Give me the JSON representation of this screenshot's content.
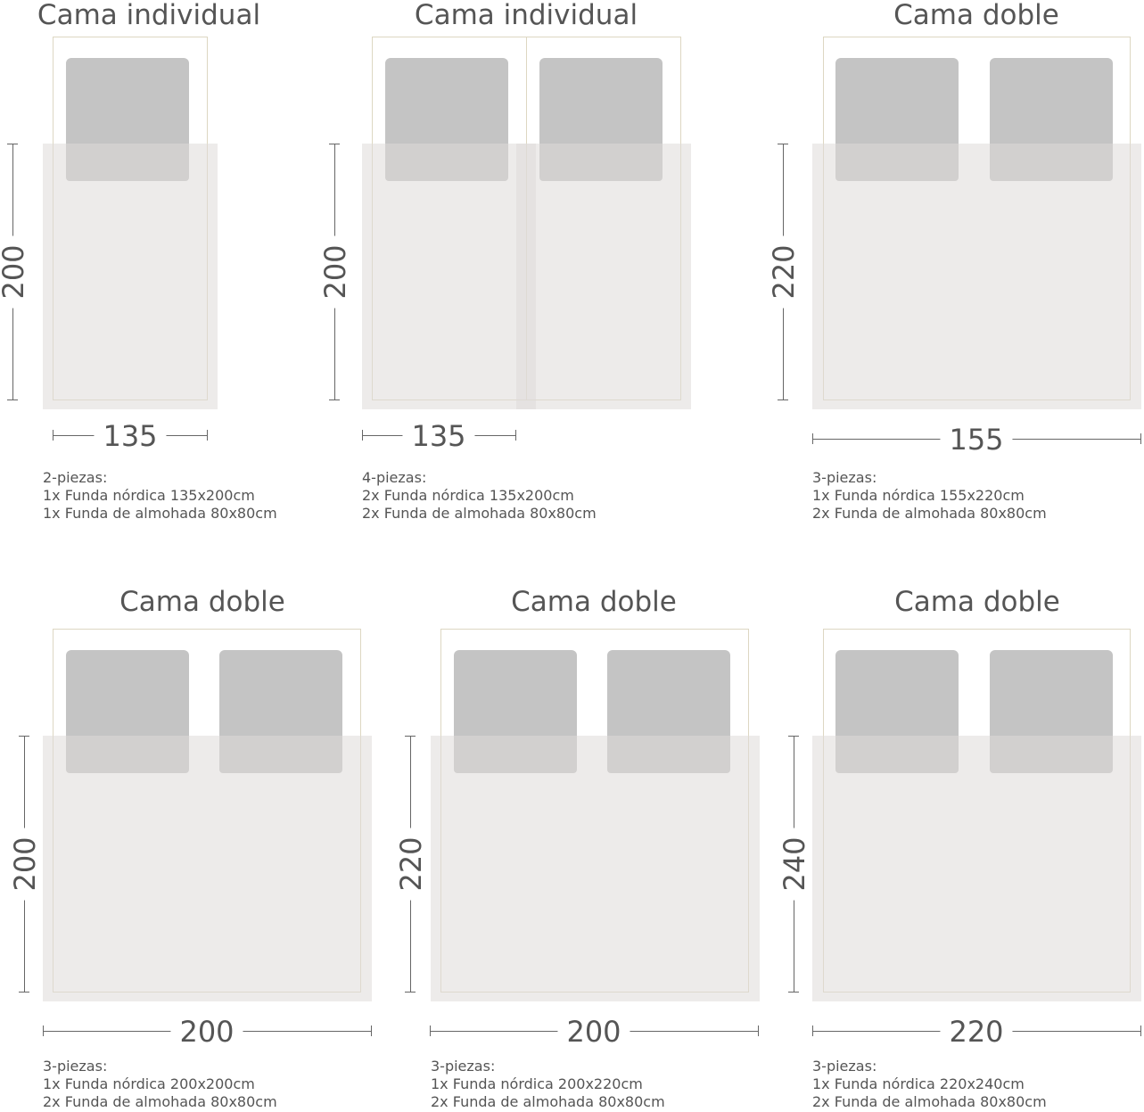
{
  "beds": [
    {
      "title": "Cama individual",
      "height_label": "200",
      "width_label": "135",
      "pieces": "2-piezas:",
      "lines": [
        "1x Funda nórdica 135x200cm",
        "1x Funda de almohada 80x80cm"
      ]
    },
    {
      "title": "Cama individual",
      "height_label": "200",
      "width_label": "135",
      "pieces": "4-piezas:",
      "lines": [
        "2x Funda nórdica 135x200cm",
        "2x Funda de almohada 80x80cm"
      ]
    },
    {
      "title": "Cama doble",
      "height_label": "220",
      "width_label": "155",
      "pieces": "3-piezas:",
      "lines": [
        "1x Funda nórdica 155x220cm",
        "2x Funda de almohada 80x80cm"
      ]
    },
    {
      "title": "Cama doble",
      "height_label": "200",
      "width_label": "200",
      "pieces": "3-piezas:",
      "lines": [
        "1x Funda nórdica 200x200cm",
        "2x Funda de almohada 80x80cm"
      ]
    },
    {
      "title": "Cama doble",
      "height_label": "220",
      "width_label": "200",
      "pieces": "3-piezas:",
      "lines": [
        "1x Funda nórdica 200x220cm",
        "2x Funda de almohada 80x80cm"
      ]
    },
    {
      "title": "Cama doble",
      "height_label": "240",
      "width_label": "220",
      "pieces": "3-piezas:",
      "lines": [
        "1x Funda nórdica 220x240cm",
        "2x Funda de almohada 80x80cm"
      ]
    }
  ],
  "colors": {
    "pillow": "#c4c4c4",
    "duvet": "#e9e7e5",
    "frame": "#ddd7c2",
    "text": "#555555"
  }
}
